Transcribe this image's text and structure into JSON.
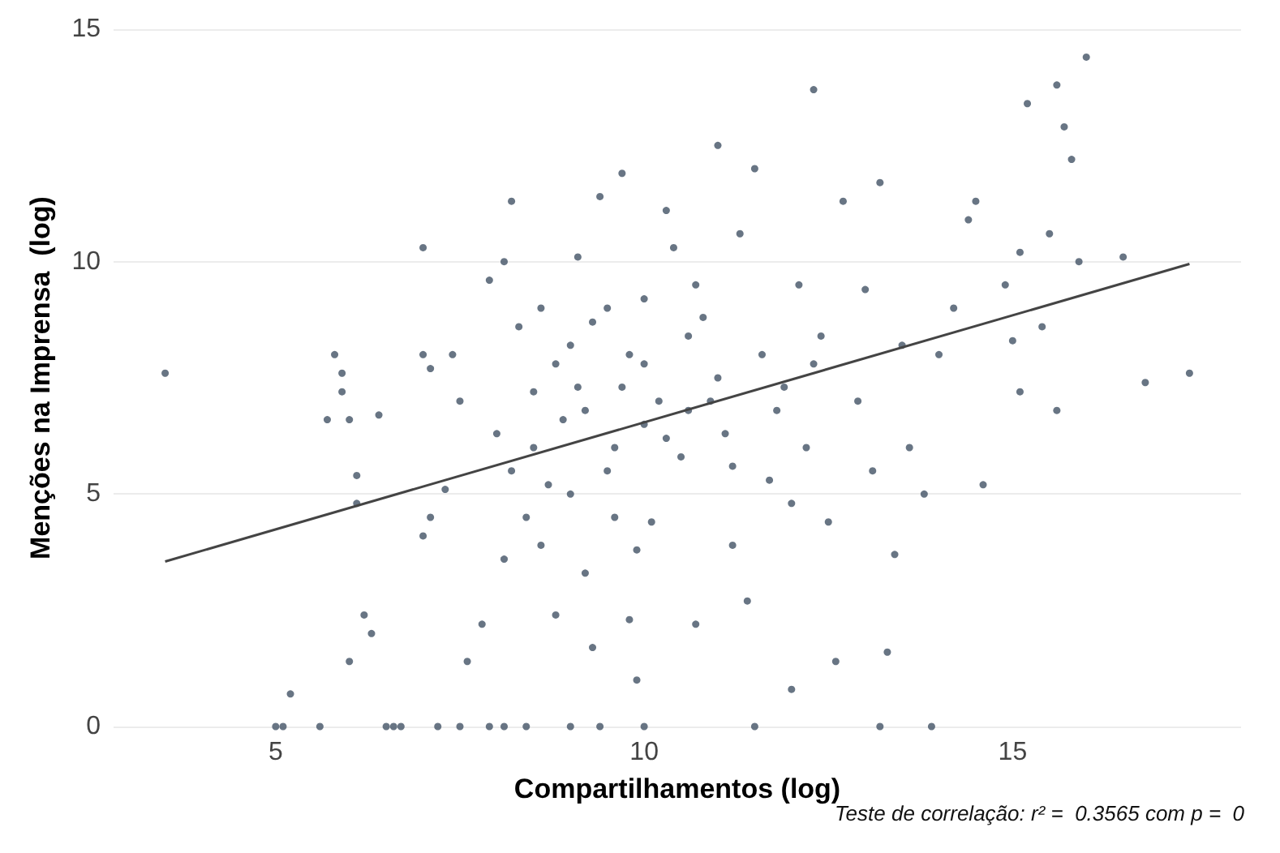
{
  "chart_data": {
    "type": "scatter",
    "xlabel": "Compartilhamentos (log)",
    "ylabel": "Menções na Imprensa  (log)",
    "annotations": [
      "Teste de correlação: r² =  0.3565 com p =  0"
    ],
    "xlim": [
      2.8,
      18.1
    ],
    "ylim": [
      0,
      15
    ],
    "xticks": [
      5,
      10,
      15
    ],
    "yticks": [
      0,
      5,
      10,
      15
    ],
    "grid": "y",
    "series": [
      {
        "marker": "circle",
        "color": "#4e5d6e",
        "x": [
          3.5,
          5.1,
          5.0,
          5.2,
          5.6,
          5.7,
          5.8,
          5.9,
          5.9,
          6.0,
          6.1,
          6.1,
          6.2,
          6.3,
          6.0,
          6.4,
          6.5,
          6.6,
          6.7,
          7.0,
          7.0,
          7.1,
          7.2,
          7.5,
          7.4,
          7.5,
          7.3,
          7.1,
          7.0,
          7.6,
          7.8,
          7.9,
          8.1,
          8.4,
          7.9,
          8.2,
          8.1,
          8.3,
          8.0,
          8.2,
          8.1,
          8.4,
          8.5,
          8.6,
          8.7,
          8.8,
          8.9,
          9.0,
          9.1,
          9.0,
          9.1,
          9.2,
          9.3,
          9.4,
          9.4,
          9.5,
          9.6,
          9.6,
          9.7,
          9.8,
          9.8,
          9.9,
          10.0,
          10.0,
          10.0,
          10.1,
          10.2,
          10.3,
          10.4,
          10.5,
          10.6,
          10.7,
          10.7,
          10.9,
          11.0,
          11.1,
          11.2,
          11.3,
          11.4,
          11.5,
          11.5,
          11.6,
          11.7,
          11.9,
          12.0,
          12.1,
          12.2,
          12.3,
          12.4,
          12.5,
          12.6,
          12.7,
          12.9,
          13.0,
          13.1,
          13.2,
          13.2,
          13.3,
          13.4,
          13.5,
          13.6,
          13.8,
          13.9,
          14.0,
          14.2,
          14.4,
          14.5,
          14.6,
          14.9,
          15.0,
          15.1,
          15.1,
          15.2,
          15.4,
          15.5,
          15.6,
          15.6,
          15.7,
          15.8,
          15.9,
          16.0,
          16.5,
          16.8,
          17.4,
          8.5,
          9.0,
          9.2,
          9.5,
          9.7,
          10.0,
          10.3,
          10.6,
          11.0,
          11.2,
          11.8,
          12.3,
          8.8,
          9.3,
          10.8,
          12.0,
          8.6,
          9.9
        ],
        "values": [
          7.6,
          0,
          0,
          0.7,
          0,
          6.6,
          8.0,
          7.6,
          7.2,
          6.6,
          5.4,
          4.8,
          2.4,
          2.0,
          1.4,
          6.7,
          0,
          0,
          0,
          10.3,
          8.0,
          7.7,
          0,
          0,
          8.0,
          7.0,
          5.1,
          4.5,
          4.1,
          1.4,
          2.2,
          0,
          0,
          0,
          9.6,
          11.3,
          10.0,
          8.6,
          6.3,
          5.5,
          3.6,
          4.5,
          7.2,
          9.0,
          5.2,
          2.4,
          6.6,
          0,
          10.1,
          8.2,
          7.3,
          3.3,
          1.7,
          0,
          11.4,
          9.0,
          6.0,
          4.5,
          11.9,
          8.0,
          2.3,
          1.0,
          0,
          9.2,
          6.5,
          4.4,
          7.0,
          11.1,
          10.3,
          5.8,
          8.4,
          9.5,
          2.2,
          7.0,
          12.5,
          6.3,
          3.9,
          10.6,
          2.7,
          12.0,
          0,
          8.0,
          5.3,
          7.3,
          0.8,
          9.5,
          6.0,
          13.7,
          8.4,
          4.4,
          1.4,
          11.3,
          7.0,
          9.4,
          5.5,
          11.7,
          0,
          1.6,
          3.7,
          8.2,
          6.0,
          5.0,
          0,
          8.0,
          9.0,
          10.9,
          11.3,
          5.2,
          9.5,
          8.3,
          10.2,
          7.2,
          13.4,
          8.6,
          10.6,
          13.8,
          6.8,
          12.9,
          12.2,
          10.0,
          14.4,
          10.1,
          7.4,
          7.6,
          6.0,
          5.0,
          6.8,
          5.5,
          7.3,
          7.8,
          6.2,
          6.8,
          7.5,
          5.6,
          6.8,
          7.8,
          7.8,
          8.7,
          8.8,
          4.8,
          3.9,
          3.8
        ]
      },
      {
        "type": "line",
        "color": "#444444",
        "x": [
          3.5,
          17.4
        ],
        "values": [
          3.55,
          9.95
        ]
      }
    ]
  }
}
